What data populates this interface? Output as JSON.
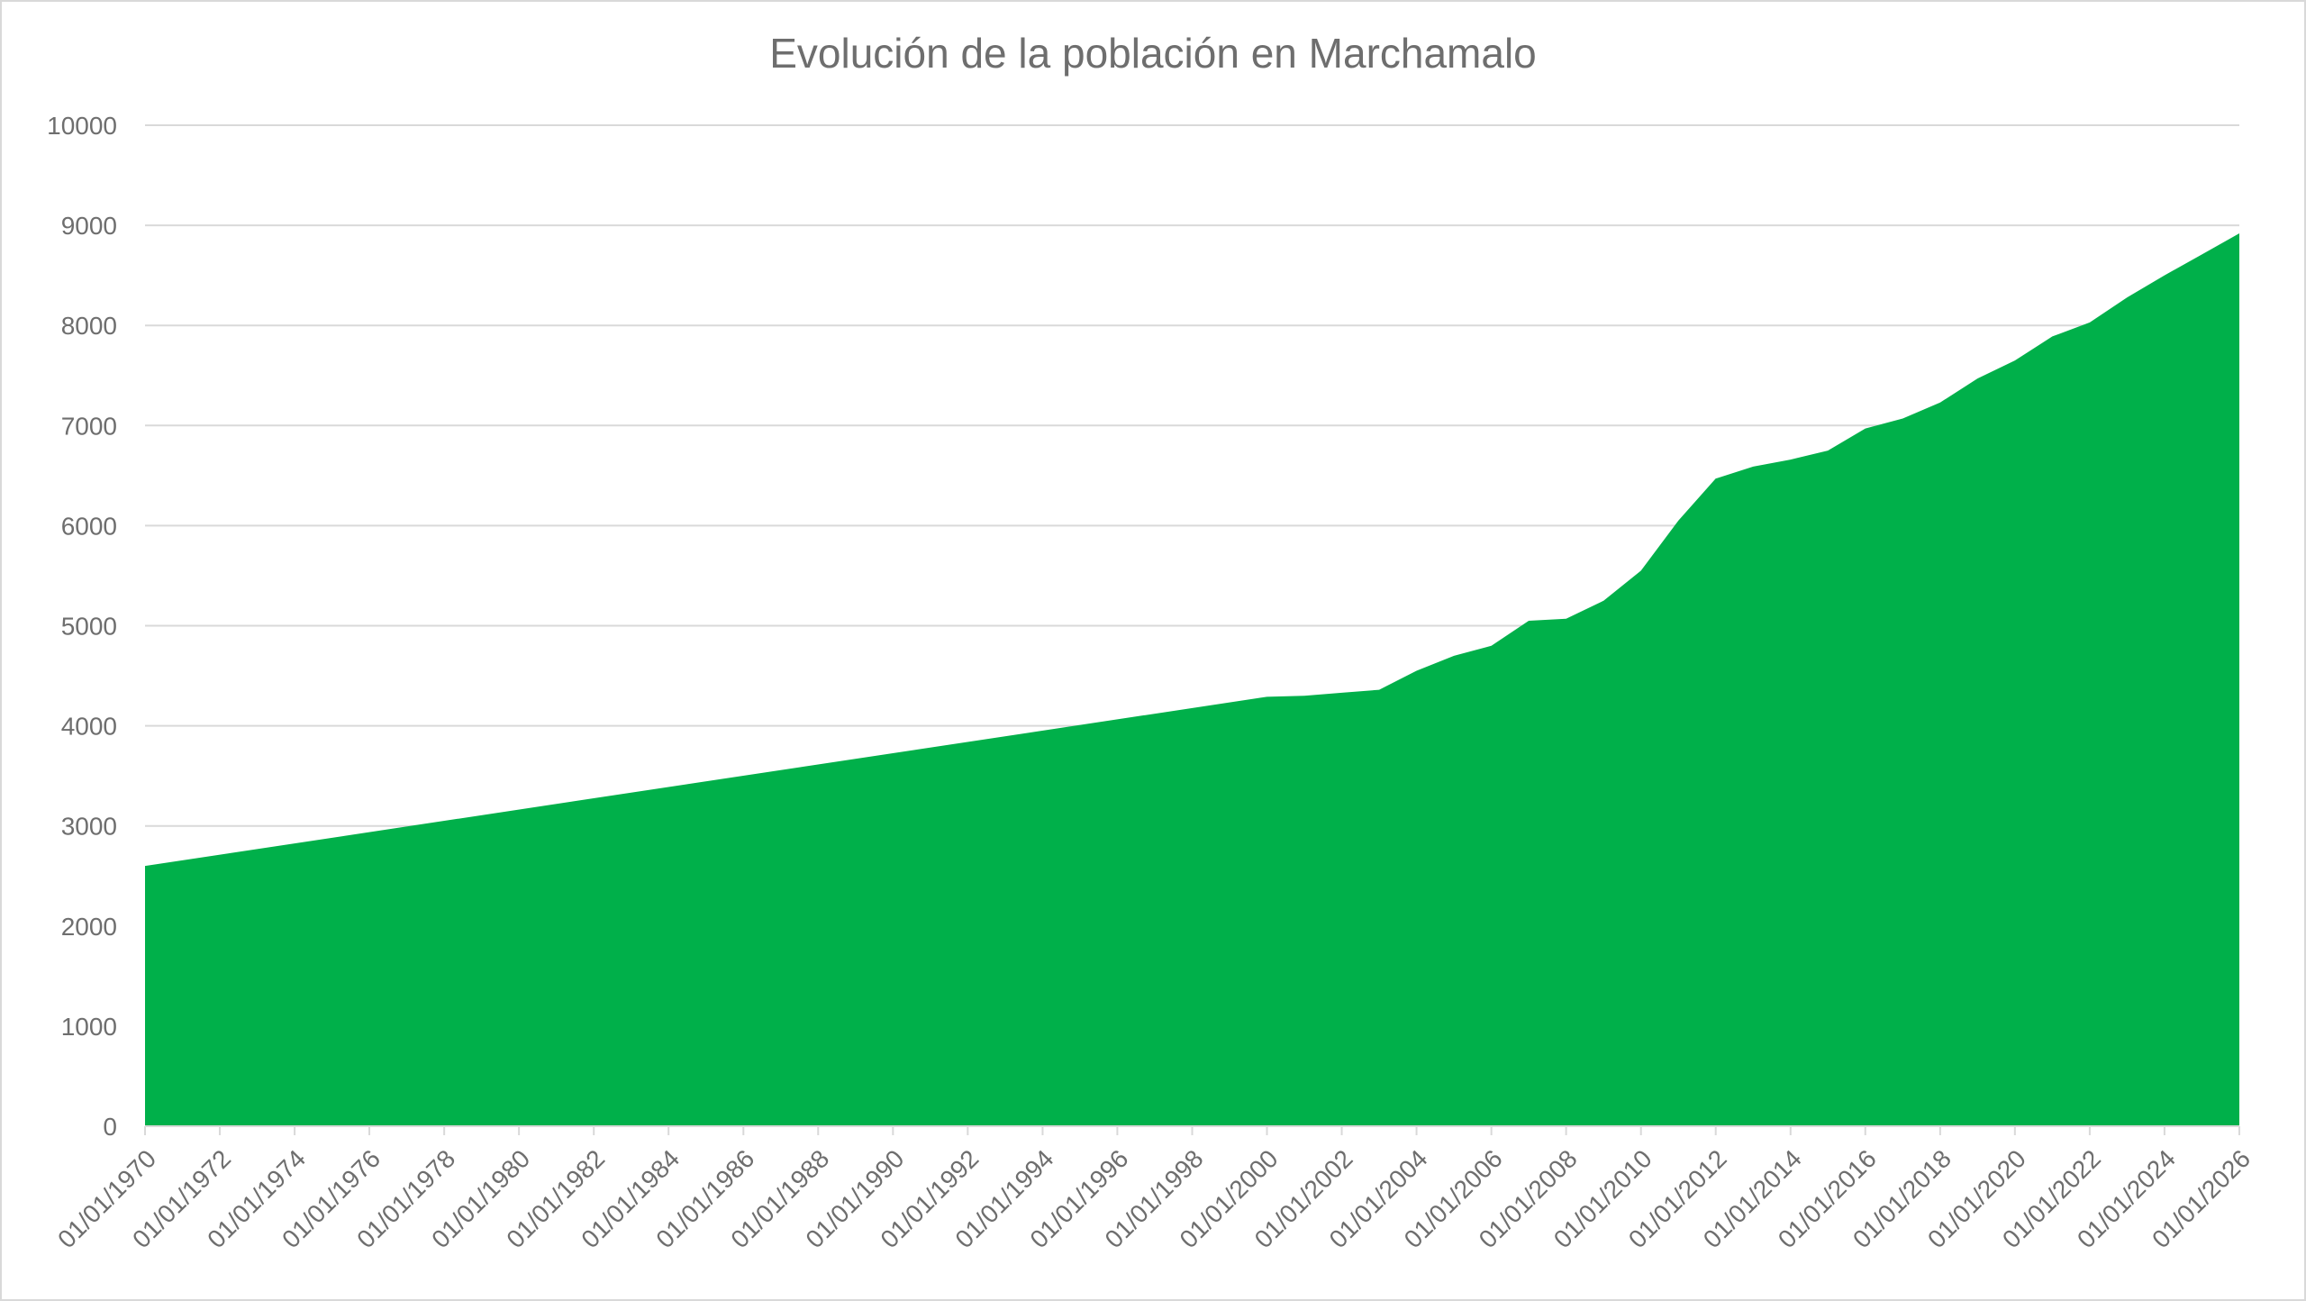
{
  "chart_data": {
    "type": "area",
    "title": "Evolución de la población en Marchamalo",
    "xlabel": "",
    "ylabel": "",
    "ylim": [
      0,
      10000
    ],
    "y_ticks": [
      0,
      1000,
      2000,
      3000,
      4000,
      5000,
      6000,
      7000,
      8000,
      9000,
      10000
    ],
    "x_tick_labels": [
      "01/01/1970",
      "01/01/1972",
      "01/01/1974",
      "01/01/1976",
      "01/01/1978",
      "01/01/1980",
      "01/01/1982",
      "01/01/1984",
      "01/01/1986",
      "01/01/1988",
      "01/01/1990",
      "01/01/1992",
      "01/01/1994",
      "01/01/1996",
      "01/01/1998",
      "01/01/2000",
      "01/01/2002",
      "01/01/2004",
      "01/01/2006",
      "01/01/2008",
      "01/01/2010",
      "01/01/2012",
      "01/01/2014",
      "01/01/2016",
      "01/01/2018",
      "01/01/2020",
      "01/01/2022",
      "01/01/2024",
      "01/01/2026"
    ],
    "grid": true,
    "legend": "none",
    "fill_color": "#00b04a",
    "gridline_color": "#d9d9d9",
    "text_color": "#6e6e6e",
    "series": [
      {
        "points": [
          {
            "x": "01/01/1970",
            "y": 2600
          },
          {
            "x": "01/01/2000",
            "y": 4290
          },
          {
            "x": "01/01/2001",
            "y": 4300
          },
          {
            "x": "01/01/2002",
            "y": 4330
          },
          {
            "x": "01/01/2003",
            "y": 4360
          },
          {
            "x": "01/01/2004",
            "y": 4550
          },
          {
            "x": "01/01/2005",
            "y": 4700
          },
          {
            "x": "01/01/2006",
            "y": 4800
          },
          {
            "x": "01/01/2007",
            "y": 5050
          },
          {
            "x": "01/01/2008",
            "y": 5070
          },
          {
            "x": "01/01/2009",
            "y": 5250
          },
          {
            "x": "01/01/2010",
            "y": 5550
          },
          {
            "x": "01/01/2011",
            "y": 6050
          },
          {
            "x": "01/01/2012",
            "y": 6470
          },
          {
            "x": "01/01/2013",
            "y": 6590
          },
          {
            "x": "01/01/2014",
            "y": 6660
          },
          {
            "x": "01/01/2015",
            "y": 6750
          },
          {
            "x": "01/01/2016",
            "y": 6970
          },
          {
            "x": "01/01/2017",
            "y": 7070
          },
          {
            "x": "01/01/2018",
            "y": 7230
          },
          {
            "x": "01/01/2019",
            "y": 7470
          },
          {
            "x": "01/01/2020",
            "y": 7650
          },
          {
            "x": "01/01/2021",
            "y": 7890
          },
          {
            "x": "01/01/2022",
            "y": 8030
          },
          {
            "x": "01/01/2023",
            "y": 8280
          },
          {
            "x": "01/01/2024",
            "y": 8500
          },
          {
            "x": "01/01/2025",
            "y": 8710
          },
          {
            "x": "01/01/2026",
            "y": 8920
          }
        ]
      }
    ]
  }
}
